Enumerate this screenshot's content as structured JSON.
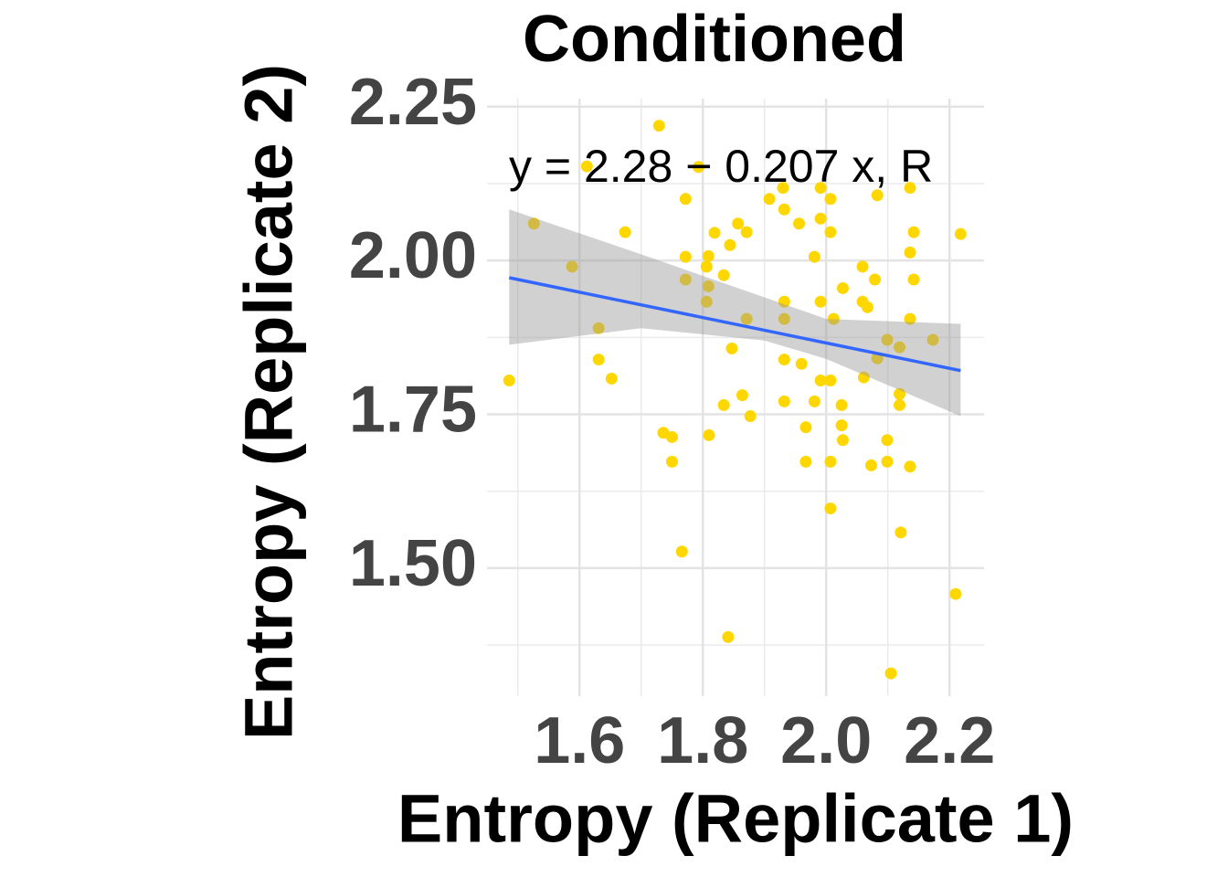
{
  "chart_data": {
    "type": "scatter",
    "title": "Conditioned",
    "x_label": "Entropy (Replicate 1)",
    "y_label": "Entropy (Replicate 2)",
    "annotation": "y = 2.28 − 0.207 x, R",
    "xlim": [
      1.45,
      2.256
    ],
    "ylim": [
      1.292,
      2.263
    ],
    "xticks": [
      1.6,
      1.8,
      {
        "value": 2.0,
        "label": "2.0"
      },
      2.2
    ],
    "yticks": [
      {
        "value": 1.5,
        "label": "1.50"
      },
      1.75,
      {
        "value": 2.0,
        "label": "2.00"
      },
      2.25
    ],
    "xminor": [
      1.5,
      1.7,
      1.9,
      2.1
    ],
    "yminor": [
      1.375,
      1.625,
      1.875,
      2.125
    ],
    "grid": true,
    "color": "#FFD700",
    "x": [
      1.486,
      1.526,
      1.588,
      1.612,
      1.631,
      1.631,
      1.652,
      1.674,
      1.729,
      1.736,
      1.75,
      1.75,
      1.766,
      1.772,
      1.772,
      1.772,
      1.793,
      1.809,
      1.806,
      1.809,
      1.806,
      1.81,
      1.819,
      1.834,
      1.834,
      1.841,
      1.844,
      1.847,
      1.857,
      1.864,
      1.871,
      1.871,
      1.877,
      1.908,
      1.93,
      1.932,
      1.932,
      1.932,
      1.932,
      1.932,
      1.956,
      1.96,
      1.967,
      1.967,
      1.981,
      1.981,
      1.991,
      1.991,
      1.991,
      1.991,
      2.007,
      2.007,
      2.007,
      2.007,
      2.007,
      2.012,
      2.025,
      2.025,
      2.027,
      2.027,
      2.059,
      2.059,
      2.061,
      2.067,
      2.073,
      2.079,
      2.083,
      2.083,
      2.099,
      2.099,
      2.099,
      2.105,
      2.119,
      2.119,
      2.119,
      2.121,
      2.136,
      2.136,
      2.136,
      2.136,
      2.142,
      2.142,
      2.173,
      2.21,
      2.218
    ],
    "values": [
      1.805,
      2.06,
      1.99,
      2.153,
      1.89,
      1.839,
      1.808,
      2.046,
      2.219,
      1.72,
      1.713,
      1.673,
      1.527,
      2.1,
      2.006,
      1.969,
      2.152,
      2.007,
      1.99,
      1.958,
      1.933,
      1.716,
      2.045,
      1.976,
      1.765,
      1.388,
      2.025,
      1.857,
      2.06,
      1.781,
      2.046,
      1.905,
      1.747,
      2.1,
      2.118,
      2.083,
      1.933,
      1.905,
      1.839,
      1.771,
      2.06,
      1.832,
      1.729,
      1.673,
      2.006,
      1.771,
      2.118,
      2.068,
      1.933,
      1.805,
      2.1,
      2.046,
      1.805,
      1.673,
      1.597,
      1.905,
      1.765,
      1.732,
      1.708,
      1.955,
      1.99,
      1.933,
      1.81,
      1.924,
      1.667,
      1.969,
      2.106,
      1.841,
      1.871,
      1.708,
      1.673,
      1.329,
      1.859,
      1.783,
      1.765,
      1.558,
      2.118,
      2.013,
      1.905,
      1.665,
      2.046,
      1.969,
      1.871,
      1.458,
      2.043
    ],
    "fit": {
      "color": "#3366FF",
      "x": [
        1.486,
        2.218
      ],
      "y": [
        1.972,
        1.821
      ]
    },
    "band": {
      "color": "#999999",
      "x": [
        1.486,
        1.7,
        1.9,
        2.0,
        2.218
      ],
      "lower": [
        1.863,
        1.89,
        1.87,
        1.84,
        1.747
      ],
      "upper": [
        2.083,
        2.01,
        1.94,
        1.905,
        1.897
      ]
    }
  }
}
